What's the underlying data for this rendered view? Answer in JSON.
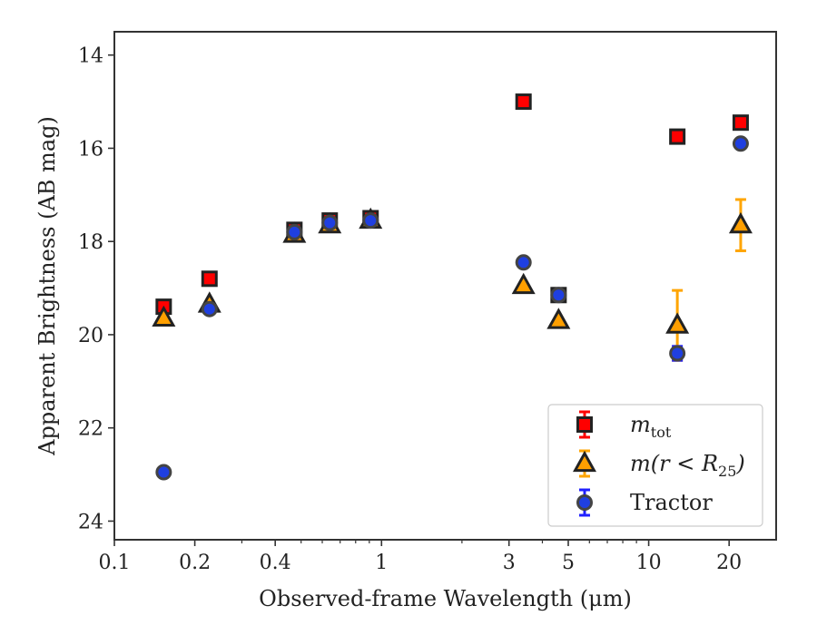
{
  "chart_data": {
    "type": "scatter",
    "title": "",
    "xlabel": "Observed-frame Wavelength (μm)",
    "ylabel": "Apparent Brightness (AB mag)",
    "xscale": "log",
    "xlim": [
      0.1,
      30
    ],
    "ylim": [
      24.4,
      13.5
    ],
    "y_inverted": true,
    "x_ticks": [
      0.1,
      0.2,
      0.4,
      1,
      3,
      5,
      10,
      20
    ],
    "x_tick_labels": [
      "0.1",
      "0.2",
      "0.4",
      "1",
      "3",
      "5",
      "10",
      "20"
    ],
    "y_ticks": [
      14,
      16,
      18,
      20,
      22,
      24
    ],
    "y_tick_labels": [
      "14",
      "16",
      "18",
      "20",
      "22",
      "24"
    ],
    "grid": false,
    "legend_position": "lower-right",
    "series": [
      {
        "name": "m_tot",
        "legend_main": "m",
        "legend_sub": "tot",
        "marker": "square",
        "color": "#ff0000",
        "edge_color": "#222222",
        "error_color": "#ff0000",
        "points": [
          {
            "x": 0.153,
            "y": 19.4
          },
          {
            "x": 0.227,
            "y": 18.8
          },
          {
            "x": 0.472,
            "y": 17.75
          },
          {
            "x": 0.64,
            "y": 17.55
          },
          {
            "x": 0.91,
            "y": 17.5
          },
          {
            "x": 3.4,
            "y": 15.0
          },
          {
            "x": 4.6,
            "y": 19.15
          },
          {
            "x": 12.8,
            "y": 15.75
          },
          {
            "x": 22.1,
            "y": 15.45
          }
        ]
      },
      {
        "name": "m(r<R25)",
        "legend_main": "m(r < R",
        "legend_sub": "25",
        "legend_tail": ")",
        "marker": "triangle",
        "color": "#ff9f00",
        "edge_color": "#222222",
        "error_color": "#ffa500",
        "points": [
          {
            "x": 0.153,
            "y": 19.65
          },
          {
            "x": 0.227,
            "y": 19.35
          },
          {
            "x": 0.472,
            "y": 17.85
          },
          {
            "x": 0.64,
            "y": 17.65
          },
          {
            "x": 0.91,
            "y": 17.55
          },
          {
            "x": 3.4,
            "y": 18.95
          },
          {
            "x": 4.6,
            "y": 19.7
          },
          {
            "x": 12.8,
            "y": 19.8,
            "err_low": 0.75,
            "err_high": 0.75
          },
          {
            "x": 22.1,
            "y": 17.65,
            "err_low": 0.55,
            "err_high": 0.55
          }
        ]
      },
      {
        "name": "Tractor",
        "marker": "circle",
        "color": "#1f3fe0",
        "edge_color": "#444444",
        "error_color": "#2020ff",
        "points": [
          {
            "x": 0.153,
            "y": 22.95
          },
          {
            "x": 0.227,
            "y": 19.45
          },
          {
            "x": 0.472,
            "y": 17.8
          },
          {
            "x": 0.64,
            "y": 17.6
          },
          {
            "x": 0.91,
            "y": 17.55
          },
          {
            "x": 3.4,
            "y": 18.45
          },
          {
            "x": 4.6,
            "y": 19.15
          },
          {
            "x": 12.8,
            "y": 20.4,
            "err_low": 0.15,
            "err_high": 0.15
          },
          {
            "x": 22.1,
            "y": 15.9
          }
        ]
      }
    ]
  }
}
